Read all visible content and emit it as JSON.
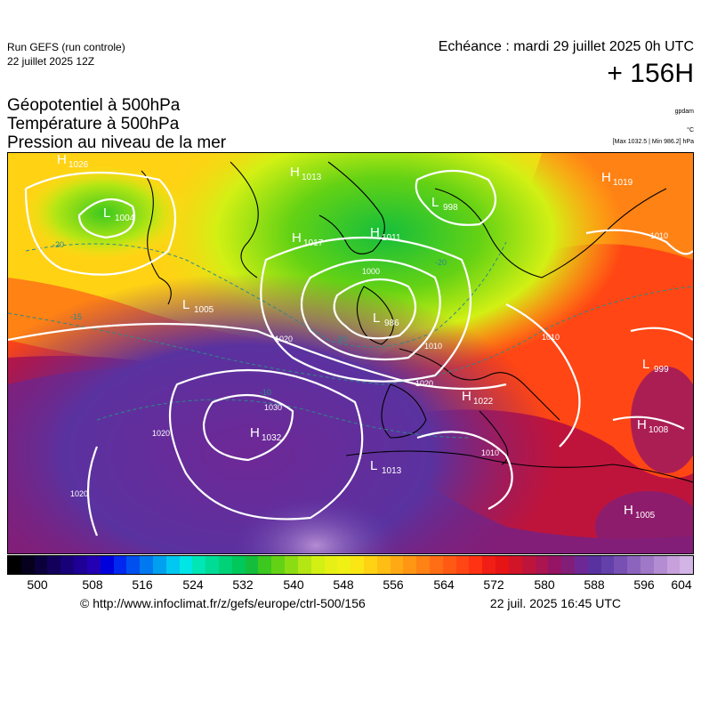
{
  "header": {
    "run_title": "Run GEFS (run controle)",
    "run_date": "22 juillet 2025 12Z",
    "echeance": "Echéance : mardi 29 juillet 2025 0h UTC",
    "lead_time": "+ 156H",
    "title_lines": [
      "Géopotentiel à 500hPa",
      "Température à 500hPa",
      "Pression au niveau de la mer"
    ],
    "unit_geopot": "gpdam",
    "unit_temp": "°C",
    "minmax": "[Max 1032.5 | Min 986.2] hPa"
  },
  "map": {
    "pressure_centers": [
      {
        "type": "H",
        "value": "1026"
      },
      {
        "type": "L",
        "value": "1004"
      },
      {
        "type": "H",
        "value": "1013"
      },
      {
        "type": "L",
        "value": "998"
      },
      {
        "type": "H",
        "value": "1019"
      },
      {
        "type": "H",
        "value": "1017"
      },
      {
        "type": "H",
        "value": "1011"
      },
      {
        "type": "L",
        "value": "1005"
      },
      {
        "type": "L",
        "value": "986"
      },
      {
        "type": "H",
        "value": "1022"
      },
      {
        "type": "L",
        "value": "999"
      },
      {
        "type": "H",
        "value": "1032"
      },
      {
        "type": "L",
        "value": "1013"
      },
      {
        "type": "H",
        "value": "1008"
      },
      {
        "type": "H",
        "value": "1005"
      }
    ],
    "isobar_labels": [
      "1030",
      "1020",
      "1020",
      "1020",
      "1010",
      "1010",
      "1010",
      "1000",
      "1020",
      "1010"
    ],
    "temperature_labels": [
      "-20",
      "-20",
      "-20",
      "-10",
      "-15"
    ]
  },
  "colorbar": {
    "ticks": [
      "500",
      "508",
      "516",
      "524",
      "532",
      "540",
      "548",
      "556",
      "564",
      "572",
      "580",
      "588",
      "596",
      "604"
    ],
    "colors": [
      "#000000",
      "#06001e",
      "#0c003c",
      "#12005a",
      "#180078",
      "#1e0096",
      "#2400b4",
      "#0000dc",
      "#0028f0",
      "#0050f0",
      "#0078f0",
      "#00a0f0",
      "#00c8f0",
      "#00e6e6",
      "#00e6b4",
      "#00dc96",
      "#00d278",
      "#00c85a",
      "#14be3c",
      "#3cc81e",
      "#64d214",
      "#8cdc14",
      "#b4e614",
      "#d2f014",
      "#e6f014",
      "#f0f014",
      "#fae614",
      "#ffd214",
      "#ffbe14",
      "#ffaa14",
      "#ff9614",
      "#ff8214",
      "#ff6e14",
      "#ff5a14",
      "#ff4614",
      "#ff3214",
      "#f01e14",
      "#e61414",
      "#d21428",
      "#be143c",
      "#aa1450",
      "#961464",
      "#821e78",
      "#6e2896",
      "#5a32a0",
      "#6440aa",
      "#7850b4",
      "#8c64be",
      "#a078c8",
      "#b48cd2",
      "#c8a0dc",
      "#d2b4e6"
    ]
  },
  "footer": {
    "credit": "© http://www.infoclimat.fr/z/gefs/europe/ctrl-500/156",
    "timestamp": "22 juil. 2025 16:45 UTC"
  }
}
